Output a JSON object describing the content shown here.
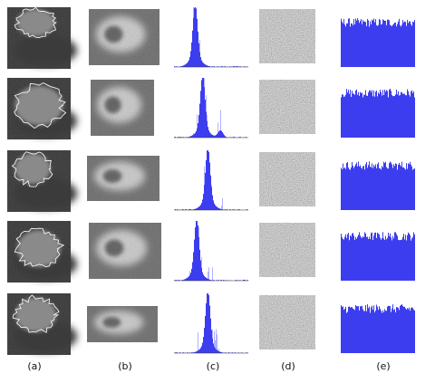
{
  "figure": {
    "panel_labels": [
      "(a)",
      "(b)",
      "(c)",
      "(d)",
      "(e)"
    ],
    "rows": 5,
    "colors": {
      "histogram_fill": "#3d3df0",
      "histogram_thin": "#7d7dff",
      "contour": "#f2f2f2",
      "background": "#ffffff"
    }
  }
}
